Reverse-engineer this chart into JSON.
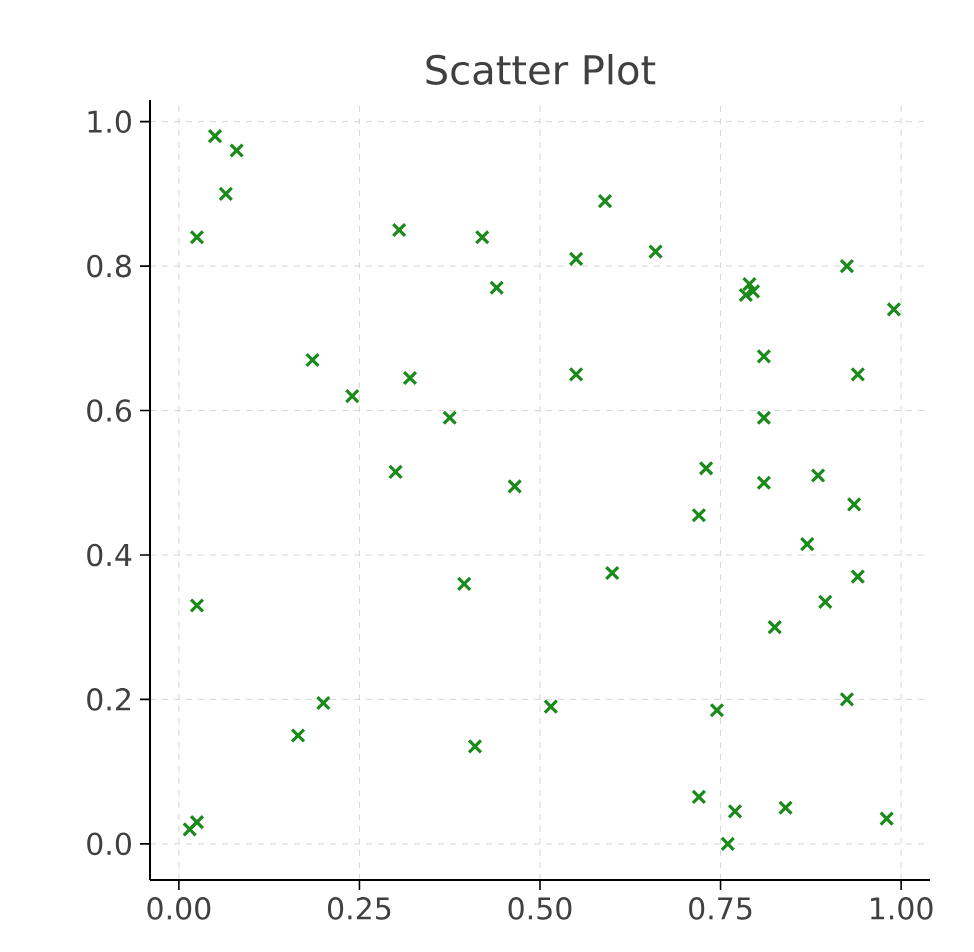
{
  "chart_data": {
    "type": "scatter",
    "title": "Scatter Plot",
    "marker": "cross",
    "grid": true,
    "xlim": [
      -0.04,
      1.04
    ],
    "ylim": [
      -0.05,
      1.03
    ],
    "xticks": [
      {
        "value": 0,
        "label": "0.00"
      },
      {
        "value": 0.25,
        "label": "0.25"
      },
      {
        "value": 0.5,
        "label": "0.50"
      },
      {
        "value": 0.75,
        "label": "0.75"
      },
      {
        "value": 1,
        "label": "1.00"
      }
    ],
    "yticks": [
      {
        "value": 0,
        "label": "0.0"
      },
      {
        "value": 0.2,
        "label": "0.2"
      },
      {
        "value": 0.4,
        "label": "0.4"
      },
      {
        "value": 0.6,
        "label": "0.6"
      },
      {
        "value": 0.8,
        "label": "0.8"
      },
      {
        "value": 1,
        "label": "1.0"
      }
    ],
    "series": [
      {
        "color": "#1a8a1a",
        "x": [
          0.05,
          0.08,
          0.065,
          0.025,
          0.025,
          0.185,
          0.24,
          0.305,
          0.32,
          0.375,
          0.3,
          0.395,
          0.42,
          0.44,
          0.465,
          0.59,
          0.55,
          0.66,
          0.55,
          0.6,
          0.515,
          0.41,
          0.2,
          0.165,
          0.015,
          0.025,
          0.73,
          0.72,
          0.745,
          0.72,
          0.77,
          0.76,
          0.84,
          0.98,
          0.79,
          0.785,
          0.795,
          0.81,
          0.81,
          0.925,
          0.99,
          0.94,
          0.81,
          0.885,
          0.935,
          0.87,
          0.94,
          0.895,
          0.825,
          0.925
        ],
        "values": [
          0.98,
          0.96,
          0.9,
          0.84,
          0.33,
          0.67,
          0.62,
          0.85,
          0.645,
          0.59,
          0.515,
          0.36,
          0.84,
          0.77,
          0.495,
          0.89,
          0.81,
          0.82,
          0.65,
          0.375,
          0.19,
          0.135,
          0.195,
          0.15,
          0.02,
          0.03,
          0.52,
          0.455,
          0.185,
          0.065,
          0.045,
          0.0,
          0.05,
          0.035,
          0.775,
          0.76,
          0.765,
          0.675,
          0.59,
          0.8,
          0.74,
          0.65,
          0.5,
          0.51,
          0.47,
          0.415,
          0.37,
          0.335,
          0.3,
          0.2
        ]
      }
    ]
  }
}
